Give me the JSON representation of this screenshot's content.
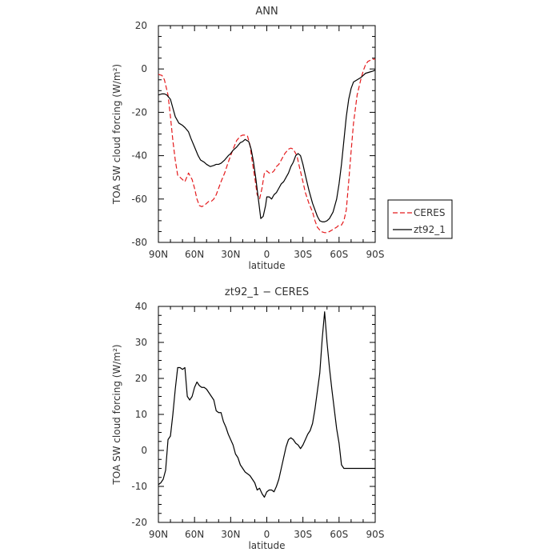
{
  "chart_data": [
    {
      "type": "line",
      "title": "ANN",
      "xlabel": "latitude",
      "ylabel": "TOA SW cloud forcing (W/m²)",
      "xlim": [
        -90,
        90
      ],
      "ylim": [
        -80,
        20
      ],
      "x_ticks": [
        -90,
        -60,
        -30,
        0,
        30,
        60,
        90
      ],
      "x_tick_labels": [
        "90N",
        "60N",
        "30N",
        "0",
        "30S",
        "60S",
        "90S"
      ],
      "y_ticks": [
        -80,
        -60,
        -40,
        -20,
        0,
        20
      ],
      "y_tick_labels": [
        "-80",
        "-60",
        "-40",
        "-20",
        "0",
        "20"
      ],
      "legend": "right",
      "series": [
        {
          "name": "CERES",
          "color": "#e41a1c",
          "dash": "dashed",
          "x": [
            -90,
            -87,
            -85,
            -82,
            -80,
            -78,
            -76,
            -74,
            -72,
            -70,
            -68,
            -65,
            -62,
            -60,
            -58,
            -56,
            -54,
            -52,
            -50,
            -48,
            -46,
            -44,
            -42,
            -40,
            -38,
            -35,
            -32,
            -30,
            -28,
            -25,
            -22,
            -20,
            -18,
            -16,
            -14,
            -12,
            -10,
            -8,
            -6,
            -4,
            -2,
            0,
            2,
            4,
            6,
            8,
            10,
            12,
            15,
            18,
            20,
            22,
            25,
            27,
            30,
            32,
            35,
            38,
            40,
            42,
            45,
            48,
            50,
            52,
            55,
            58,
            60,
            62,
            64,
            66,
            68,
            70,
            72,
            75,
            78,
            80,
            82,
            84,
            86,
            88,
            90
          ],
          "values": [
            -2.5,
            -3,
            -5,
            -12,
            -22,
            -33,
            -42,
            -49,
            -50,
            -51,
            -52,
            -48,
            -51,
            -55,
            -60,
            -63,
            -63.5,
            -63,
            -62,
            -61,
            -61,
            -60,
            -58,
            -55,
            -52,
            -48,
            -43,
            -40,
            -37,
            -33,
            -31,
            -30.5,
            -30.5,
            -31,
            -35,
            -43,
            -50,
            -58,
            -60,
            -55,
            -48,
            -47,
            -48,
            -48,
            -47,
            -45,
            -44,
            -42,
            -39,
            -37,
            -36.5,
            -37,
            -40,
            -45,
            -52,
            -57,
            -62,
            -66,
            -70,
            -73,
            -75,
            -75.5,
            -75.5,
            -75,
            -74,
            -73,
            -72,
            -72,
            -70,
            -65,
            -52,
            -38,
            -25,
            -12,
            -5,
            -1,
            2,
            3.5,
            4,
            4.5,
            4.5
          ]
        },
        {
          "name": "zt92_1",
          "color": "#000000",
          "dash": "solid",
          "x": [
            -90,
            -87,
            -85,
            -83,
            -80,
            -78,
            -76,
            -73,
            -70,
            -68,
            -65,
            -63,
            -60,
            -57,
            -55,
            -52,
            -50,
            -47,
            -44,
            -42,
            -40,
            -38,
            -35,
            -32,
            -30,
            -28,
            -25,
            -22,
            -20,
            -18,
            -15,
            -13,
            -11,
            -9,
            -7,
            -5,
            -3,
            -1,
            0,
            2,
            4,
            6,
            8,
            10,
            12,
            14,
            16,
            18,
            20,
            22,
            24,
            26,
            28,
            30,
            32,
            35,
            38,
            40,
            42,
            44,
            46,
            48,
            50,
            52,
            55,
            58,
            60,
            62,
            64,
            66,
            68,
            70,
            72,
            75,
            78,
            80,
            82,
            85,
            88,
            90
          ],
          "values": [
            -12,
            -11.5,
            -11.5,
            -12,
            -14,
            -18,
            -22,
            -25,
            -26,
            -27,
            -29,
            -32,
            -36,
            -40,
            -42,
            -43,
            -44,
            -45,
            -44.5,
            -44,
            -44,
            -43.5,
            -42,
            -40,
            -39,
            -37.5,
            -36,
            -34,
            -33.5,
            -32.5,
            -33.5,
            -37,
            -43,
            -51,
            -60,
            -69,
            -68,
            -63,
            -59,
            -59,
            -60,
            -58,
            -57,
            -55,
            -53,
            -52,
            -50,
            -48,
            -45,
            -43,
            -40,
            -39,
            -40,
            -44,
            -49,
            -56,
            -62,
            -65,
            -68,
            -70,
            -70.5,
            -70.5,
            -70,
            -69,
            -66,
            -60,
            -53,
            -44,
            -33,
            -22,
            -14,
            -9,
            -6,
            -5,
            -4,
            -3,
            -2,
            -1.5,
            -1,
            -0.5
          ]
        }
      ]
    },
    {
      "type": "line",
      "title": "zt92_1 − CERES",
      "xlabel": "latitude",
      "ylabel": "TOA SW cloud forcing (W/m²)",
      "xlim": [
        -90,
        90
      ],
      "ylim": [
        -20,
        40
      ],
      "x_ticks": [
        -90,
        -60,
        -30,
        0,
        30,
        60,
        90
      ],
      "x_tick_labels": [
        "90N",
        "60N",
        "30N",
        "0",
        "30S",
        "60S",
        "90S"
      ],
      "y_ticks": [
        -20,
        -10,
        0,
        10,
        20,
        30,
        40
      ],
      "y_tick_labels": [
        "-20",
        "-10",
        "0",
        "10",
        "20",
        "30",
        "40"
      ],
      "series": [
        {
          "color": "#000000",
          "dash": "solid",
          "x": [
            -90,
            -88,
            -86,
            -84,
            -82,
            -80,
            -78,
            -76,
            -74,
            -72,
            -70,
            -68,
            -66,
            -64,
            -62,
            -60,
            -58,
            -56,
            -54,
            -52,
            -50,
            -48,
            -46,
            -44,
            -42,
            -40,
            -38,
            -36,
            -34,
            -32,
            -30,
            -28,
            -26,
            -24,
            -22,
            -20,
            -18,
            -16,
            -14,
            -12,
            -10,
            -8,
            -6,
            -4,
            -2,
            0,
            2,
            4,
            6,
            8,
            10,
            12,
            14,
            16,
            18,
            20,
            22,
            24,
            26,
            28,
            30,
            32,
            34,
            36,
            38,
            40,
            42,
            44,
            46,
            48,
            50,
            52,
            54,
            56,
            58,
            60,
            62,
            64,
            66,
            68,
            70,
            72,
            74,
            76,
            78,
            80,
            82,
            84,
            86,
            88,
            90
          ],
          "values": [
            -9.5,
            -9,
            -8,
            -5.5,
            3,
            4,
            10,
            17,
            23,
            23,
            22.5,
            23,
            15,
            14,
            15,
            17.5,
            19,
            18,
            17.5,
            17.5,
            17,
            16,
            15,
            14,
            11,
            10.5,
            10.5,
            8,
            6.5,
            4.5,
            3,
            1.5,
            -1,
            -2,
            -4,
            -5,
            -6,
            -6.5,
            -7,
            -8,
            -9,
            -11,
            -10.5,
            -12,
            -13,
            -11.5,
            -11,
            -11,
            -11.5,
            -10,
            -8,
            -5,
            -2,
            1,
            3,
            3.5,
            3,
            2,
            1.5,
            0.5,
            1.5,
            3,
            4.5,
            5.5,
            7.5,
            11.5,
            16.5,
            21.5,
            31,
            38.5,
            30,
            23,
            17,
            11.5,
            6,
            2,
            -4,
            -5,
            -5,
            -5,
            -5,
            -5,
            -5,
            -5,
            -5,
            -5,
            -5,
            -5,
            -5,
            -5,
            -5
          ]
        }
      ]
    }
  ]
}
